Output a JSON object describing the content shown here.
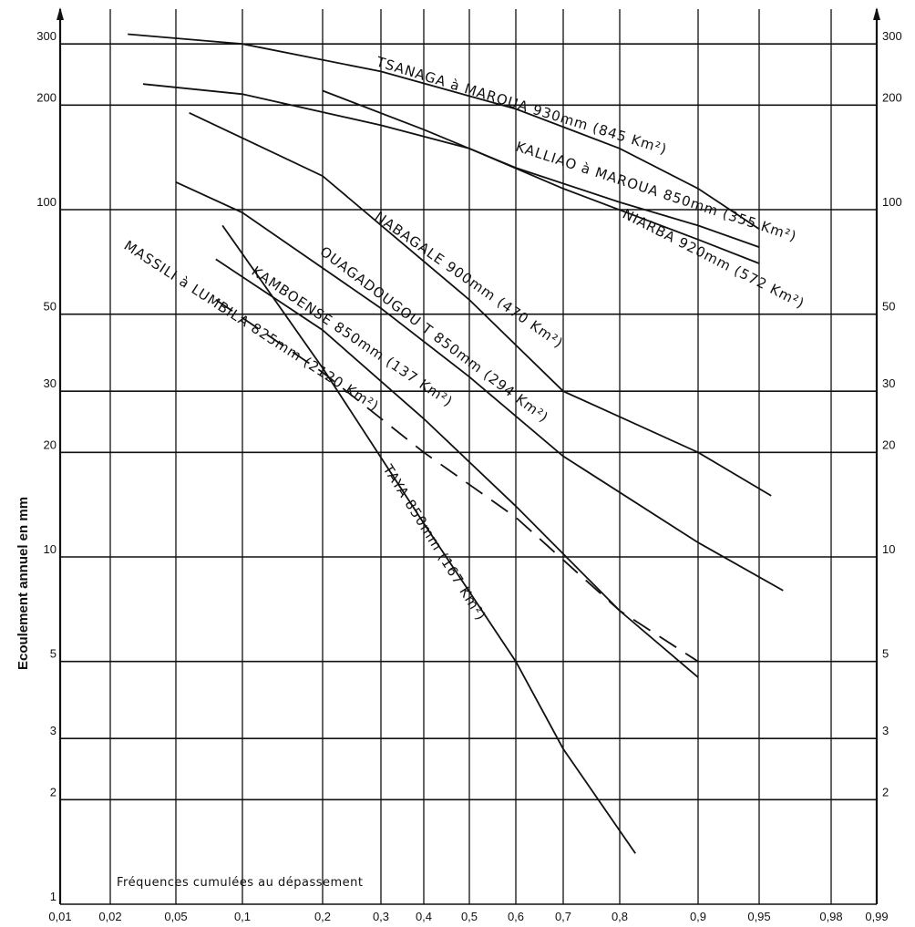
{
  "chart_data": {
    "type": "line",
    "y_scale": "log",
    "x_scale": "normal-probability",
    "ylabel": "Ecoulement annuel en mm",
    "annotation": "Fréquences cumulées au dépassement",
    "ylim": [
      1,
      300
    ],
    "grid": true,
    "legend": "none",
    "x_ticks": [
      "0,01",
      "0,02",
      "0,05",
      "0,1",
      "0,2",
      "0,3",
      "0,4",
      "0,5",
      "0,6",
      "0,7",
      "0,8",
      "0,9",
      "0,95",
      "0,98",
      "0,99"
    ],
    "y_ticks_left": [
      "300",
      "200",
      "100",
      "50",
      "30",
      "20",
      "10",
      "5",
      "3",
      "2",
      "1"
    ],
    "y_ticks_right": [
      "300",
      "200",
      "100",
      "50",
      "30",
      "20",
      "10",
      "5",
      "3",
      "2"
    ],
    "series": [
      {
        "label": "TSANAGA à MAROUA 930mm (845 Km²)",
        "x": [
          0.028,
          0.1,
          0.3,
          0.6,
          0.8,
          0.9,
          0.95
        ],
        "y": [
          320,
          300,
          250,
          195,
          150,
          115,
          88
        ]
      },
      {
        "label": "KALLIAO à MAROUA 850mm (355 Km²)",
        "x": [
          0.2,
          0.4,
          0.6,
          0.8,
          0.9,
          0.95
        ],
        "y": [
          220,
          170,
          132,
          105,
          90,
          78
        ]
      },
      {
        "label": "NIARBA 920mm (572 Km²)",
        "x": [
          0.035,
          0.1,
          0.3,
          0.5,
          0.7,
          0.9,
          0.95
        ],
        "y": [
          230,
          215,
          175,
          150,
          115,
          82,
          70
        ]
      },
      {
        "label": "NABAGALE 900mm (470 Km²)",
        "x": [
          0.06,
          0.2,
          0.5,
          0.7,
          0.9,
          0.955
        ],
        "y": [
          190,
          125,
          55,
          30,
          20,
          15
        ]
      },
      {
        "label": "OUAGADOUGOU T 850mm (294 Km²)",
        "x": [
          0.05,
          0.1,
          0.3,
          0.5,
          0.7,
          0.9,
          0.96
        ],
        "y": [
          120,
          98,
          52,
          33,
          19.5,
          11,
          8
        ]
      },
      {
        "label": "KAMBOENSE 850mm (137 Km²)",
        "x": [
          0.08,
          0.2,
          0.4,
          0.6,
          0.8,
          0.9
        ],
        "y": [
          72,
          45,
          25,
          14,
          7,
          4.5
        ]
      },
      {
        "label": "MASSILI à LUMBILA 825mm (2120 Km²)",
        "style": "dashed",
        "x": [
          0.08,
          0.2,
          0.4,
          0.6,
          0.8,
          0.9
        ],
        "y": [
          55,
          34,
          20,
          13,
          7,
          5
        ]
      },
      {
        "label": "TAYA 850mm (167 Km²)",
        "x": [
          0.085,
          0.2,
          0.4,
          0.6,
          0.7,
          0.82
        ],
        "y": [
          90,
          35,
          12.5,
          5,
          2.8,
          1.4
        ]
      }
    ]
  }
}
